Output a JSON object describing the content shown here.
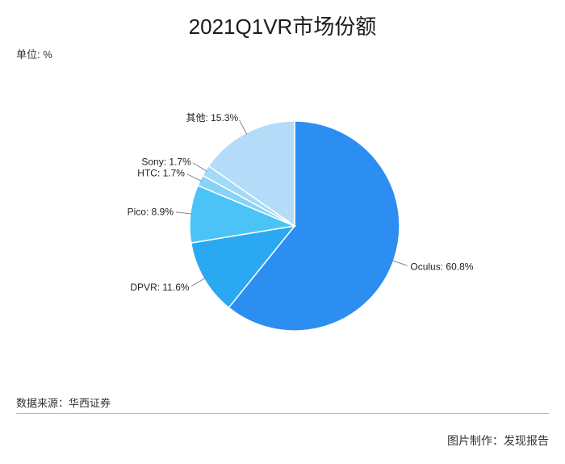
{
  "page": {
    "unit_label": "单位: %",
    "source": "数据来源：华西证券",
    "credit": "图片制作：发现报告"
  },
  "chart_data": {
    "type": "pie",
    "title": "2021Q1VR市场份额",
    "categories": [
      "Oculus",
      "DPVR",
      "Pico",
      "HTC",
      "Sony",
      "其他"
    ],
    "values": [
      60.8,
      11.6,
      8.9,
      1.7,
      1.7,
      15.3
    ],
    "data_labels": [
      "Oculus: 60.8%",
      "DPVR: 11.6%",
      "Pico: 8.9%",
      "HTC: 1.7%",
      "Sony: 1.7%",
      "其他: 15.3%"
    ],
    "colors": [
      "#2c8ef0",
      "#2aa8f2",
      "#4cc3f6",
      "#86d3f7",
      "#a2dbf8",
      "#b4dbf8"
    ],
    "legend": "none"
  }
}
